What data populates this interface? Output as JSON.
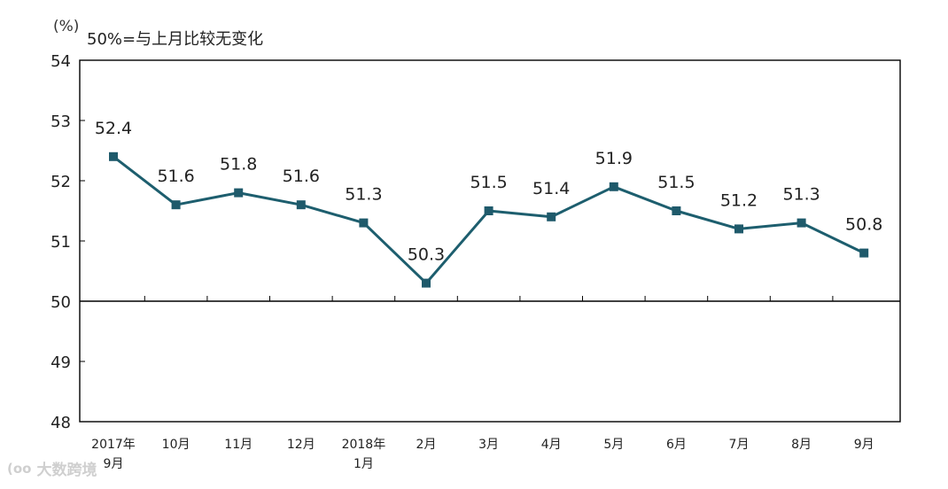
{
  "header": {
    "unit": "(%)",
    "note": "50%=与上月比较无变化"
  },
  "watermark": {
    "logo": "(oo",
    "text": "大数跨境"
  },
  "colors": {
    "line": "#1d5e6e",
    "marker": "#1f5a6b",
    "axis": "#000000",
    "text": "#222222"
  },
  "chart_data": {
    "type": "line",
    "title": "",
    "xlabel": "",
    "ylabel": "(%)",
    "ylim": [
      48,
      54
    ],
    "yticks": [
      48,
      49,
      50,
      51,
      52,
      53,
      54
    ],
    "reference_line": 50,
    "grid": false,
    "categories": [
      [
        "2017年",
        "9月"
      ],
      [
        "10月"
      ],
      [
        "11月"
      ],
      [
        "12月"
      ],
      [
        "2018年",
        "1月"
      ],
      [
        "2月"
      ],
      [
        "3月"
      ],
      [
        "4月"
      ],
      [
        "5月"
      ],
      [
        "6月"
      ],
      [
        "7月"
      ],
      [
        "8月"
      ],
      [
        "9月"
      ]
    ],
    "series": [
      {
        "values": [
          52.4,
          51.6,
          51.8,
          51.6,
          51.3,
          50.3,
          51.5,
          51.4,
          51.9,
          51.5,
          51.2,
          51.3,
          50.8
        ],
        "labels": [
          "52.4",
          "51.6",
          "51.8",
          "51.6",
          "51.3",
          "50.3",
          "51.5",
          "51.4",
          "51.9",
          "51.5",
          "51.2",
          "51.3",
          "50.8"
        ]
      }
    ]
  }
}
